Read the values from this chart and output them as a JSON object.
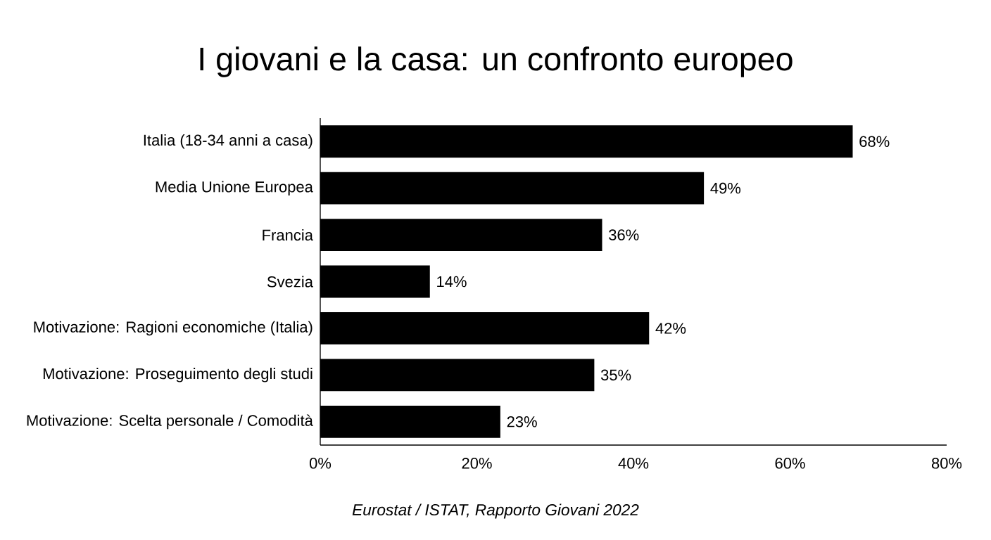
{
  "chart_data": {
    "type": "bar",
    "orientation": "horizontal",
    "title": "I giovani e la casa: un confronto europeo",
    "categories": [
      "Italia (18-34 anni a casa)",
      "Media Unione Europea",
      "Francia",
      "Svezia",
      "Motivazione: Ragioni economiche (Italia)",
      "Motivazione: Proseguimento degli studi",
      "Motivazione: Scelta personale / Comodità"
    ],
    "values": [
      68,
      49,
      36,
      14,
      42,
      35,
      23
    ],
    "value_labels": [
      "68%",
      "49%",
      "36%",
      "14%",
      "42%",
      "35%",
      "23%"
    ],
    "color": "#000000",
    "xlim": [
      0,
      80
    ],
    "xticks": [
      {
        "value": 0,
        "label": "0%"
      },
      {
        "value": 20,
        "label": "20%"
      },
      {
        "value": 40,
        "label": "40%"
      },
      {
        "value": 60,
        "label": "60%"
      },
      {
        "value": 80,
        "label": "80%"
      }
    ],
    "grid": false,
    "annotations": [
      "Eurostat / ISTAT, Rapporto Giovani 2022"
    ]
  }
}
